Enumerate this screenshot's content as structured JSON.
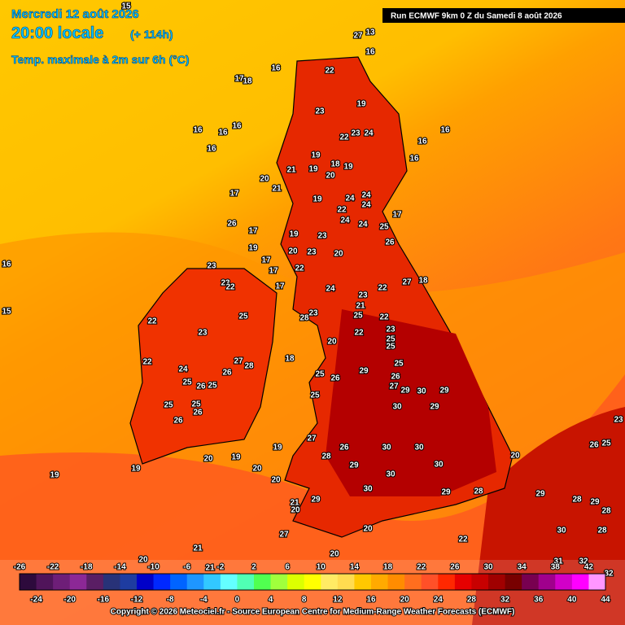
{
  "header": {
    "date": "Mercredi 12 août 2026",
    "time": "20:00 locale",
    "lead": "(+ 114h)",
    "parameter": "Temp. maximale à 2m sur 6h (°C)",
    "run": "Run ECMWF 9km 0 Z du Samedi 8 août 2026"
  },
  "map_labels": [
    27,
    16,
    22,
    19,
    23,
    23,
    24,
    22,
    16,
    16,
    16,
    19,
    18,
    19,
    19,
    21,
    20,
    19,
    24,
    24,
    24,
    22,
    24,
    24,
    17,
    25,
    26,
    23,
    19,
    20,
    23,
    20,
    22,
    17,
    17,
    17,
    23,
    23,
    22,
    25,
    23,
    22,
    22,
    24,
    25,
    26,
    25,
    26,
    27,
    28,
    25,
    25,
    26,
    26,
    18,
    28,
    23,
    20,
    25,
    21,
    23,
    22,
    22,
    23,
    25,
    25,
    25,
    27,
    18,
    22,
    24,
    25,
    25,
    26,
    29,
    26,
    27,
    29,
    30,
    29,
    30,
    29,
    30,
    30,
    30,
    30,
    27,
    26,
    28,
    29,
    29,
    28,
    20,
    30,
    29,
    21,
    20,
    20,
    22,
    27,
    20,
    19,
    20,
    20,
    19,
    19,
    19,
    21,
    20,
    21,
    20,
    29,
    28,
    29,
    28,
    30,
    28,
    32,
    31,
    32,
    23,
    25,
    26,
    16,
    16,
    16,
    16,
    16,
    17,
    18,
    15,
    16,
    15,
    13,
    17,
    26,
    20,
    21,
    17,
    19
  ],
  "colorbar": {
    "ticks_top": [
      -26,
      -22,
      -18,
      -14,
      -10,
      -6,
      -2,
      2,
      6,
      10,
      14,
      18,
      22,
      26,
      30,
      34,
      38,
      42
    ],
    "ticks_bottom": [
      -24,
      -20,
      -16,
      -12,
      -8,
      -4,
      0,
      4,
      8,
      12,
      16,
      20,
      24,
      28,
      32,
      36,
      40,
      44
    ],
    "colors": [
      "#2d0a3c",
      "#50145a",
      "#6e1e78",
      "#8c2896",
      "#5a1e64",
      "#283278",
      "#1e3ca0",
      "#0000c8",
      "#0028ff",
      "#0064ff",
      "#1e96ff",
      "#32c8ff",
      "#64ffff",
      "#50ffb4",
      "#50ff50",
      "#a0ff3c",
      "#dcff00",
      "#ffff00",
      "#ffeb64",
      "#ffdc50",
      "#ffc800",
      "#ffaa00",
      "#ff8c00",
      "#ff6e1e",
      "#ff5028",
      "#ff2800",
      "#e60000",
      "#c80000",
      "#a00000",
      "#780000",
      "#780050",
      "#a0008c",
      "#d200c8",
      "#ff00ff",
      "#ff96ff"
    ]
  },
  "footer": {
    "copyright": "Copyright © 2026 Meteociel.fr - Source European Centre for Medium-Range Weather Forecasts (ECMWF)"
  }
}
